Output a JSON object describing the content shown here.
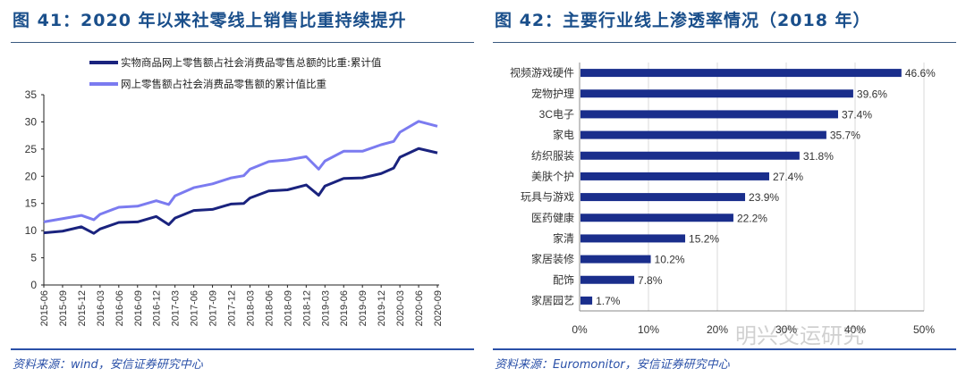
{
  "left": {
    "title": "图 41：2020 年以来社零线上销售比重持续提升",
    "source": "资料来源：wind，安信证券研究中心"
  },
  "right": {
    "title": "图 42：主要行业线上渗透率情况（2018 年）",
    "source": "资料来源：Euromonitor，安信证券研究中心",
    "watermark": "明兴交运研究"
  },
  "colors": {
    "title": "#1a4f8b",
    "dark_series": "#1a237e",
    "light_series": "#7b7bf0",
    "bar": "#1a2e8c"
  },
  "chart_data": [
    {
      "type": "line",
      "ylim": [
        0,
        35
      ],
      "yticks": [
        0,
        5,
        10,
        15,
        20,
        25,
        30,
        35
      ],
      "xticks": [
        "2015-06",
        "2015-09",
        "2015-12",
        "2016-03",
        "2016-06",
        "2016-09",
        "2016-12",
        "2017-03",
        "2017-06",
        "2017-09",
        "2017-12",
        "2018-03",
        "2018-06",
        "2018-09",
        "2018-12",
        "2019-03",
        "2019-06",
        "2019-09",
        "2019-12",
        "2020-03",
        "2020-06",
        "2020-09"
      ],
      "grid": false,
      "legend_position": "top",
      "x": [
        "2015-06",
        "2015-09",
        "2015-12",
        "2016-02",
        "2016-03",
        "2016-06",
        "2016-09",
        "2016-12",
        "2017-02",
        "2017-03",
        "2017-06",
        "2017-09",
        "2017-12",
        "2018-02",
        "2018-03",
        "2018-06",
        "2018-09",
        "2018-12",
        "2019-02",
        "2019-03",
        "2019-06",
        "2019-09",
        "2019-12",
        "2020-02",
        "2020-03",
        "2020-06",
        "2020-09"
      ],
      "series": [
        {
          "name": "实物商品网上零售额占社会消费品零售总额的比重:累计值",
          "color": "#1a237e",
          "values": [
            9.6,
            9.9,
            10.7,
            9.5,
            10.3,
            11.5,
            11.6,
            12.6,
            11.1,
            12.3,
            13.7,
            13.9,
            14.9,
            15.0,
            16.0,
            17.3,
            17.5,
            18.4,
            16.5,
            18.2,
            19.6,
            19.7,
            20.5,
            21.5,
            23.5,
            25.1,
            24.3
          ]
        },
        {
          "name": "网上零售额占社会消费品零售额的累计值比重",
          "color": "#7b7bf0",
          "values": [
            11.6,
            12.2,
            12.8,
            12.0,
            13.0,
            14.3,
            14.5,
            15.5,
            14.8,
            16.4,
            17.9,
            18.6,
            19.7,
            20.1,
            21.3,
            22.7,
            23.0,
            23.6,
            21.3,
            22.8,
            24.6,
            24.6,
            25.8,
            26.4,
            28.1,
            30.1,
            29.2
          ]
        }
      ]
    },
    {
      "type": "bar",
      "orientation": "horizontal",
      "xlim": [
        0,
        50
      ],
      "xticks": [
        "0%",
        "10%",
        "20%",
        "30%",
        "40%",
        "50%"
      ],
      "grid": true,
      "categories": [
        "视频游戏硬件",
        "宠物护理",
        "3C电子",
        "家电",
        "纺织服装",
        "美肤个护",
        "玩具与游戏",
        "医药健康",
        "家清",
        "家居装修",
        "配饰",
        "家居园艺"
      ],
      "values": [
        46.6,
        39.6,
        37.4,
        35.7,
        31.8,
        27.4,
        23.9,
        22.2,
        15.2,
        10.2,
        7.8,
        1.7
      ],
      "labels": [
        "46.6%",
        "39.6%",
        "37.4%",
        "35.7%",
        "31.8%",
        "27.4%",
        "23.9%",
        "22.2%",
        "15.2%",
        "10.2%",
        "7.8%",
        "1.7%"
      ]
    }
  ]
}
